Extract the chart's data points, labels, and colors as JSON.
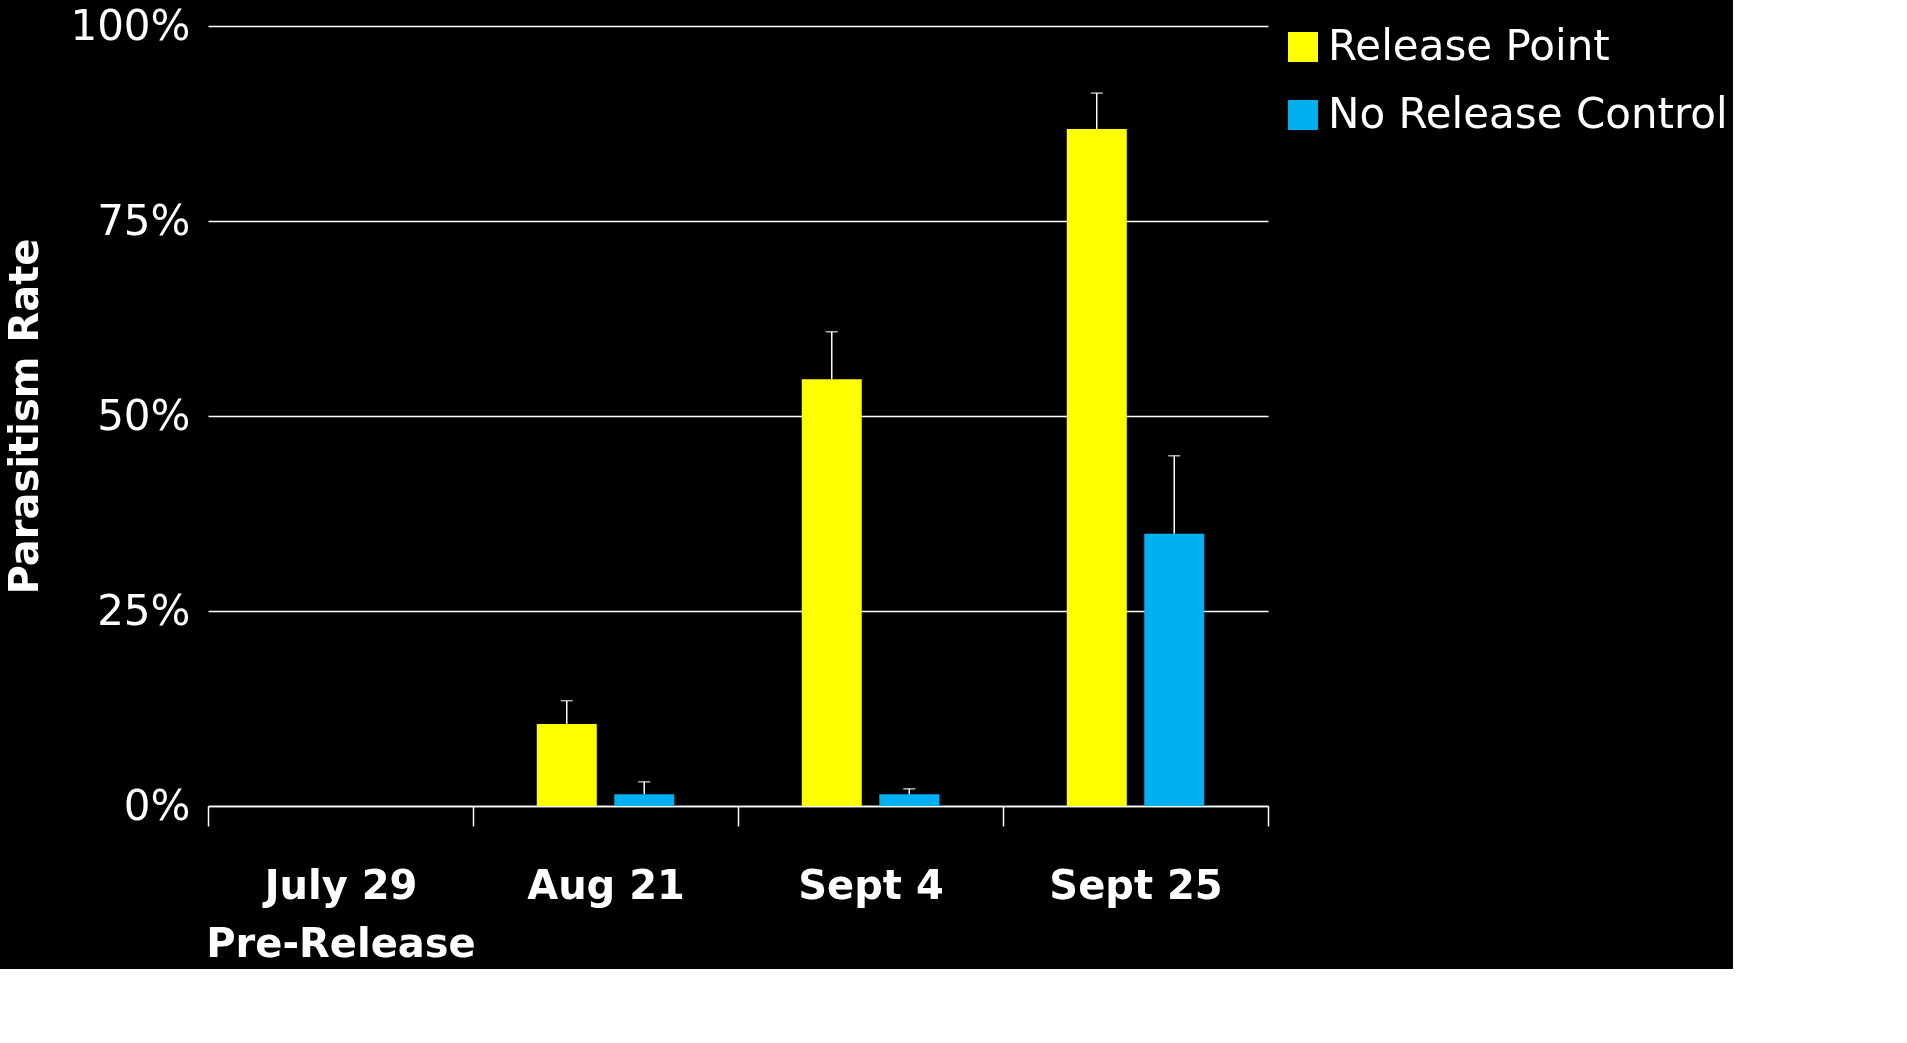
{
  "chart_data": {
    "type": "bar",
    "ylabel": "Parasitism Rate",
    "categories": [
      "July 29\nPre-Release",
      "Aug 21",
      "Sept 4",
      "Sept 25"
    ],
    "series": [
      {
        "name": "Release Point",
        "color": "#ffff00",
        "values": [
          0,
          0.105,
          0.547,
          0.868
        ],
        "errors": [
          null,
          [
            0.105,
            0.135
          ],
          [
            0.547,
            0.608
          ],
          [
            0.868,
            0.914
          ]
        ]
      },
      {
        "name": "No Release Control",
        "color": "#00b0f0",
        "values": [
          0,
          0.015,
          0.015,
          0.349
        ],
        "errors": [
          null,
          [
            0.015,
            0.031
          ],
          [
            0.015,
            0.022
          ],
          [
            0.349,
            0.449
          ]
        ]
      }
    ],
    "ylim": [
      0,
      1
    ],
    "yticks": [
      {
        "value": 0,
        "label": "0%"
      },
      {
        "value": 0.25,
        "label": "25%"
      },
      {
        "value": 0.5,
        "label": "50%"
      },
      {
        "value": 0.75,
        "label": "75%"
      },
      {
        "value": 1,
        "label": "100%"
      }
    ],
    "grid": "y",
    "legend": "top right"
  }
}
